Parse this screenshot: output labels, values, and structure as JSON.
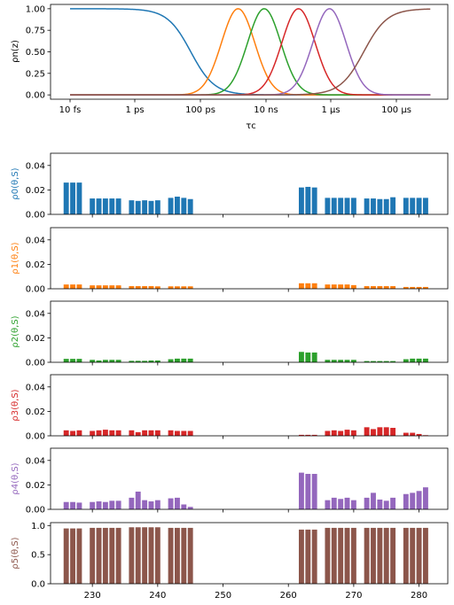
{
  "chart_data": [
    {
      "type": "line",
      "xlabel": "τc",
      "ylabel": "ρn(z)",
      "x_scale": "log10",
      "xlim": [
        -12,
        -2
      ],
      "ylim": [
        -0.05,
        1.05
      ],
      "x_ticks": [
        {
          "value": -14,
          "label": "10 fs"
        },
        {
          "value": -12,
          "label": "1 ps"
        },
        {
          "value": -10,
          "label": "100 ps"
        },
        {
          "value": -8,
          "label": "10 ns"
        },
        {
          "value": -6,
          "label": "1 μs"
        },
        {
          "value": -4,
          "label": "100 μs"
        }
      ],
      "y_ticks": [
        "0.00",
        "0.25",
        "0.50",
        "0.75",
        "1.00"
      ],
      "series": [
        {
          "color": "#1f77b4",
          "shape": "falling-sigmoid",
          "center": -10.3,
          "width": 0.36
        },
        {
          "color": "#ff7f0e",
          "shape": "gaussian",
          "center": -8.85,
          "width": 0.72
        },
        {
          "color": "#2ca02c",
          "shape": "gaussian",
          "center": -8.05,
          "width": 0.72
        },
        {
          "color": "#d62728",
          "shape": "gaussian",
          "center": -7.0,
          "width": 0.72
        },
        {
          "color": "#9467bd",
          "shape": "gaussian",
          "center": -6.05,
          "width": 0.72
        },
        {
          "color": "#8c564b",
          "shape": "rising-sigmoid",
          "center": -5.0,
          "width": 0.36
        }
      ]
    },
    {
      "type": "bar",
      "ylabel": "ρ0(θ,S)",
      "color": "#1f77b4",
      "ylim": [
        0,
        0.05
      ],
      "y_ticks": [
        "0.00",
        "0.02",
        "0.04"
      ],
      "x": [
        226,
        227,
        228,
        230,
        231,
        232,
        233,
        234,
        236,
        237,
        238,
        239,
        240,
        242,
        243,
        244,
        245,
        262,
        263,
        264,
        266,
        267,
        268,
        269,
        270,
        272,
        273,
        274,
        275,
        276,
        278,
        279,
        280,
        281
      ],
      "values": [
        0.026,
        0.026,
        0.026,
        0.013,
        0.013,
        0.013,
        0.013,
        0.013,
        0.0115,
        0.011,
        0.0115,
        0.011,
        0.0115,
        0.0135,
        0.0145,
        0.0135,
        0.0125,
        0.022,
        0.0225,
        0.022,
        0.0135,
        0.0135,
        0.0135,
        0.0135,
        0.0135,
        0.013,
        0.013,
        0.0125,
        0.0125,
        0.014,
        0.0135,
        0.0135,
        0.0135,
        0.0135
      ]
    },
    {
      "type": "bar",
      "ylabel": "ρ1(θ,S)",
      "color": "#ff7f0e",
      "ylim": [
        0,
        0.05
      ],
      "y_ticks": [
        "0.00",
        "0.02",
        "0.04"
      ],
      "x": [
        226,
        227,
        228,
        230,
        231,
        232,
        233,
        234,
        236,
        237,
        238,
        239,
        240,
        242,
        243,
        244,
        245,
        262,
        263,
        264,
        266,
        267,
        268,
        269,
        270,
        272,
        273,
        274,
        275,
        276,
        278,
        279,
        280,
        281
      ],
      "values": [
        0.0035,
        0.0035,
        0.0035,
        0.0028,
        0.0028,
        0.0028,
        0.0028,
        0.0028,
        0.0022,
        0.0022,
        0.0022,
        0.0022,
        0.002,
        0.002,
        0.002,
        0.002,
        0.002,
        0.0045,
        0.0045,
        0.0045,
        0.0035,
        0.0035,
        0.0035,
        0.0035,
        0.003,
        0.0022,
        0.0022,
        0.0022,
        0.0022,
        0.0022,
        0.0015,
        0.0015,
        0.0015,
        0.0015
      ]
    },
    {
      "type": "bar",
      "ylabel": "ρ2(θ,S)",
      "color": "#2ca02c",
      "ylim": [
        0,
        0.05
      ],
      "y_ticks": [
        "0.00",
        "0.02",
        "0.04"
      ],
      "x": [
        226,
        227,
        228,
        230,
        231,
        232,
        233,
        234,
        236,
        237,
        238,
        239,
        240,
        242,
        243,
        244,
        245,
        262,
        263,
        264,
        266,
        267,
        268,
        269,
        270,
        272,
        273,
        274,
        275,
        276,
        278,
        279,
        280,
        281
      ],
      "values": [
        0.0028,
        0.0028,
        0.0028,
        0.002,
        0.0015,
        0.002,
        0.002,
        0.002,
        0.0012,
        0.0012,
        0.0012,
        0.0015,
        0.0015,
        0.0025,
        0.003,
        0.003,
        0.003,
        0.0085,
        0.008,
        0.008,
        0.002,
        0.002,
        0.002,
        0.002,
        0.002,
        0.001,
        0.001,
        0.001,
        0.001,
        0.001,
        0.0025,
        0.003,
        0.003,
        0.003
      ]
    },
    {
      "type": "bar",
      "ylabel": "ρ3(θ,S)",
      "color": "#d62728",
      "ylim": [
        0,
        0.05
      ],
      "y_ticks": [
        "0.00",
        "0.02",
        "0.04"
      ],
      "x": [
        226,
        227,
        228,
        230,
        231,
        232,
        233,
        234,
        236,
        237,
        238,
        239,
        240,
        242,
        243,
        244,
        245,
        262,
        263,
        264,
        266,
        267,
        268,
        269,
        270,
        272,
        273,
        274,
        275,
        276,
        278,
        279,
        280,
        281
      ],
      "values": [
        0.0045,
        0.004,
        0.0045,
        0.004,
        0.0045,
        0.005,
        0.0045,
        0.0045,
        0.0045,
        0.003,
        0.0045,
        0.0045,
        0.0045,
        0.0045,
        0.004,
        0.004,
        0.004,
        0.0008,
        0.0008,
        0.0008,
        0.004,
        0.0045,
        0.004,
        0.005,
        0.0045,
        0.007,
        0.0055,
        0.007,
        0.007,
        0.0065,
        0.0025,
        0.0025,
        0.0015,
        0.0005
      ]
    },
    {
      "type": "bar",
      "ylabel": "ρ4(θ,S)",
      "color": "#9467bd",
      "ylim": [
        0,
        0.05
      ],
      "y_ticks": [
        "0.00",
        "0.02",
        "0.04"
      ],
      "x": [
        226,
        227,
        228,
        230,
        231,
        232,
        233,
        234,
        236,
        237,
        238,
        239,
        240,
        242,
        243,
        244,
        245,
        262,
        263,
        264,
        266,
        267,
        268,
        269,
        270,
        272,
        273,
        274,
        275,
        276,
        278,
        279,
        280,
        281
      ],
      "values": [
        0.006,
        0.006,
        0.0055,
        0.006,
        0.0065,
        0.006,
        0.007,
        0.007,
        0.0095,
        0.0145,
        0.0075,
        0.0065,
        0.0075,
        0.009,
        0.0095,
        0.004,
        0.002,
        0.03,
        0.029,
        0.029,
        0.0075,
        0.0095,
        0.0085,
        0.0095,
        0.0075,
        0.0095,
        0.0135,
        0.008,
        0.007,
        0.0095,
        0.0125,
        0.0135,
        0.015,
        0.018
      ]
    },
    {
      "type": "bar",
      "ylabel": "ρ5(θ,S)",
      "color": "#8c564b",
      "ylim": [
        0,
        1.05
      ],
      "y_ticks": [
        "0.0",
        "0.5",
        "1.0"
      ],
      "x_ticks": [
        "230",
        "240",
        "250",
        "260",
        "270",
        "280"
      ],
      "x": [
        226,
        227,
        228,
        230,
        231,
        232,
        233,
        234,
        236,
        237,
        238,
        239,
        240,
        242,
        243,
        244,
        245,
        262,
        263,
        264,
        266,
        267,
        268,
        269,
        270,
        272,
        273,
        274,
        275,
        276,
        278,
        279,
        280,
        281
      ],
      "values": [
        0.95,
        0.95,
        0.95,
        0.96,
        0.96,
        0.96,
        0.96,
        0.96,
        0.97,
        0.97,
        0.97,
        0.97,
        0.97,
        0.96,
        0.96,
        0.96,
        0.96,
        0.93,
        0.93,
        0.93,
        0.96,
        0.96,
        0.96,
        0.96,
        0.96,
        0.96,
        0.96,
        0.96,
        0.96,
        0.96,
        0.96,
        0.96,
        0.96,
        0.96
      ]
    }
  ]
}
